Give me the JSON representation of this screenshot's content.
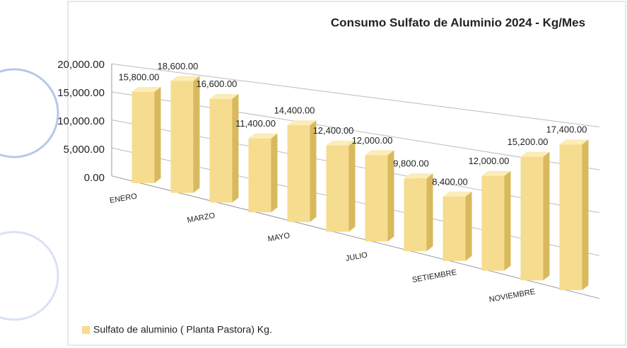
{
  "chart_data": {
    "type": "bar3d",
    "title": "Consumo Sulfato de Aluminio 2024 -  Kg/Mes",
    "categories": [
      "ENERO",
      null,
      "MARZO",
      null,
      "MAYO",
      null,
      "JULIO",
      null,
      "SETIEMBRE",
      null,
      "NOVIEMBRE",
      null
    ],
    "series": [
      {
        "name": "Sulfato de aluminio  ( Planta Pastora) Kg.",
        "color": "#f6dc8e",
        "values": [
          15800,
          18600,
          16600,
          11400,
          14400,
          12400,
          12000,
          9800,
          8400,
          12000,
          15200,
          17400
        ],
        "value_labels": [
          "15,800.00",
          "18,600.00",
          "16,600.00",
          "11,400.00",
          "14,400.00",
          "12,400.00",
          "12,000.00",
          "9,800.00",
          "8,400.00",
          "12,000.00",
          "15,200.00",
          "17,400.00"
        ]
      }
    ],
    "ylim": [
      0,
      20000
    ],
    "yticks": [
      {
        "value": 0,
        "label": "0.00"
      },
      {
        "value": 5000,
        "label": "5,000.00"
      },
      {
        "value": 10000,
        "label": "10,000.00"
      },
      {
        "value": 15000,
        "label": "15,000.00"
      },
      {
        "value": 20000,
        "label": "20,000.00"
      }
    ],
    "grid": true,
    "legend": "bottom-left"
  }
}
